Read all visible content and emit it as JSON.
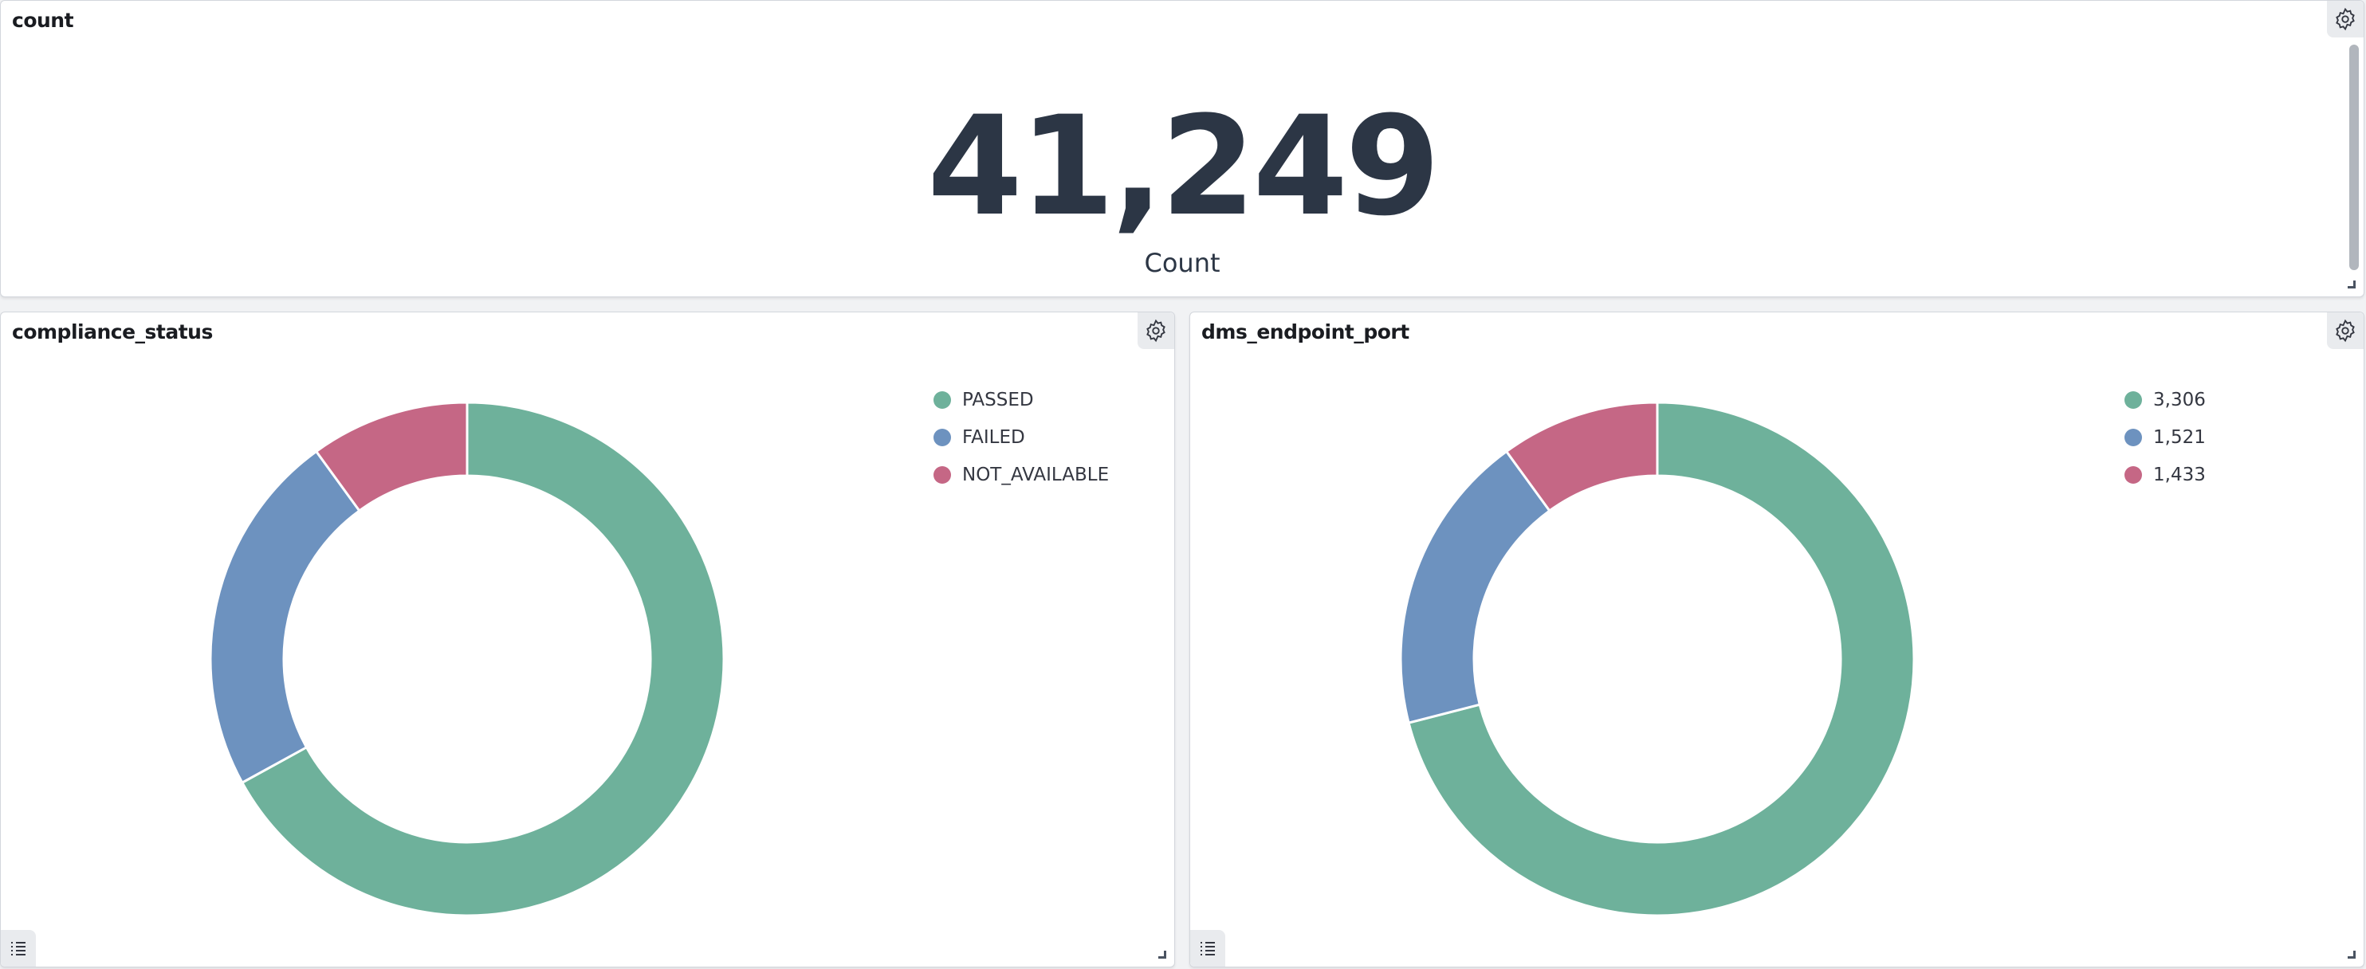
{
  "colors": {
    "green": "#6eb19b",
    "blue": "#6d92bf",
    "pink": "#c56785",
    "text": "#2c3645"
  },
  "count_panel": {
    "title": "count",
    "value": "41,249",
    "label": "Count",
    "settings_icon": "gear-icon"
  },
  "chart_data": [
    {
      "type": "pie",
      "title": "compliance_status",
      "donut": true,
      "legend_position": "top-right",
      "categories": [
        "PASSED",
        "FAILED",
        "NOT_AVAILABLE"
      ],
      "values_percent_estimated": [
        67,
        23,
        10
      ],
      "colors": [
        "#6eb19b",
        "#6d92bf",
        "#c56785"
      ]
    },
    {
      "type": "pie",
      "title": "dms_endpoint_port",
      "donut": true,
      "legend_position": "top-right",
      "categories": [
        "3,306",
        "1,521",
        "1,433"
      ],
      "values_percent_estimated": [
        71,
        19,
        10
      ],
      "colors": [
        "#6eb19b",
        "#6d92bf",
        "#c56785"
      ]
    }
  ]
}
